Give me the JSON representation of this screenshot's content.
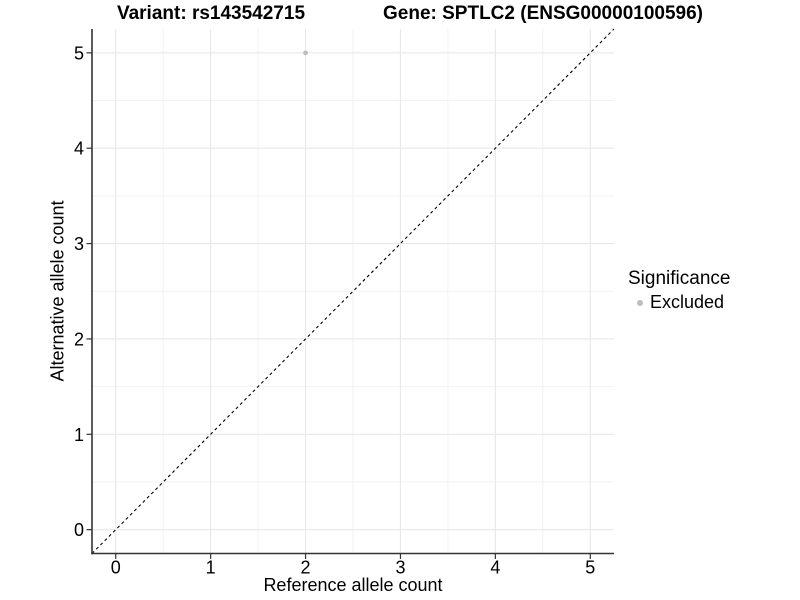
{
  "header": {
    "title_left": "Variant: rs143542715",
    "title_right": "Gene: SPTLC2 (ENSG00000100596)"
  },
  "legend": {
    "title": "Significance",
    "items": [
      {
        "label": "Excluded",
        "color": "#bdbdbd"
      }
    ]
  },
  "chart_data": {
    "type": "scatter",
    "title": "Variant: rs143542715    Gene: SPTLC2 (ENSG00000100596)",
    "xlabel": "Reference allele count",
    "ylabel": "Alternative allele count",
    "xlim": [
      -0.25,
      5.25
    ],
    "ylim": [
      -0.25,
      5.25
    ],
    "x_ticks": [
      0,
      1,
      2,
      3,
      4,
      5
    ],
    "y_ticks": [
      0,
      1,
      2,
      3,
      4,
      5
    ],
    "x_minor_ticks": [
      0.5,
      1.5,
      2.5,
      3.5,
      4.5
    ],
    "y_minor_ticks": [
      0.5,
      1.5,
      2.5,
      3.5,
      4.5
    ],
    "grid": true,
    "legend_position": "right",
    "series": [
      {
        "name": "Excluded",
        "color": "#bdbdbd",
        "points": [
          [
            2,
            5
          ]
        ]
      }
    ],
    "reference_line": {
      "slope": 1,
      "intercept": 0,
      "style": "dashed",
      "color": "#000000"
    },
    "colors": {
      "background": "#ffffff",
      "grid_major": "#e8e8e8",
      "grid_minor": "#f2f2f2",
      "axis_line": "#333333",
      "tick_mark": "#333333",
      "text": "#000000"
    }
  }
}
